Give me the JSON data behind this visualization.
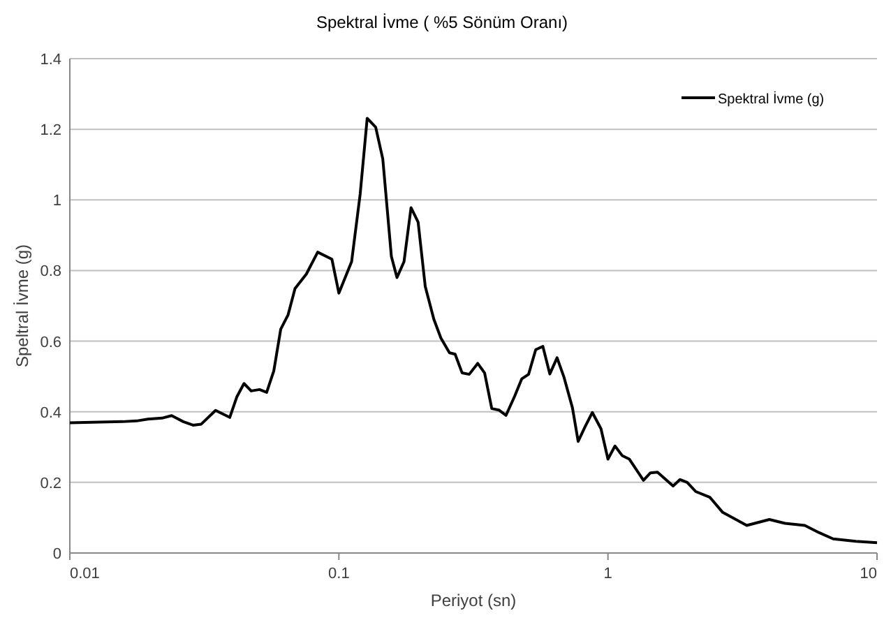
{
  "chart_data": {
    "type": "line",
    "title": "Spektral İvme ( %5 Sönüm Oranı)",
    "xlabel": "Periyot (sn)",
    "ylabel": "Speltral İvme (g)",
    "log": "x",
    "grid": "y",
    "legend": "top right",
    "marker": "none",
    "line_style": "solid",
    "xlim": [
      0.01,
      10
    ],
    "xticks": [
      0.01,
      0.1,
      1,
      10
    ],
    "ylim": [
      0,
      1.4
    ],
    "yticks": [
      0,
      0.2,
      0.4,
      0.6,
      0.8,
      1,
      1.2,
      1.4
    ],
    "x": [
      0.01,
      0.0157,
      0.0177,
      0.0195,
      0.022,
      0.0239,
      0.0264,
      0.0287,
      0.0308,
      0.0348,
      0.0393,
      0.0418,
      0.0444,
      0.0472,
      0.0507,
      0.0539,
      0.0573,
      0.0608,
      0.0647,
      0.0687,
      0.0757,
      0.0834,
      0.0942,
      0.1,
      0.1115,
      0.12,
      0.1274,
      0.137,
      0.1456,
      0.1567,
      0.1644,
      0.1746,
      0.1854,
      0.197,
      0.2094,
      0.2254,
      0.2393,
      0.2576,
      0.2704,
      0.2871,
      0.305,
      0.328,
      0.348,
      0.37,
      0.393,
      0.418,
      0.45,
      0.478,
      0.507,
      0.539,
      0.573,
      0.608,
      0.647,
      0.687,
      0.738,
      0.775,
      0.824,
      0.875,
      0.942,
      1,
      1.062,
      1.129,
      1.2,
      1.355,
      1.439,
      1.528,
      1.746,
      1.854,
      1.97,
      2.12,
      2.39,
      2.67,
      2.94,
      3.28,
      3.98,
      4.55,
      5.39,
      6.08,
      6.87,
      8.34,
      10
    ],
    "series": [
      {
        "name": "Spektral İvme (g)",
        "color": "#000000",
        "values": [
          0.369,
          0.372,
          0.374,
          0.379,
          0.382,
          0.389,
          0.372,
          0.362,
          0.365,
          0.404,
          0.384,
          0.443,
          0.48,
          0.459,
          0.463,
          0.455,
          0.516,
          0.634,
          0.674,
          0.749,
          0.79,
          0.852,
          0.832,
          0.736,
          0.825,
          1.017,
          1.231,
          1.206,
          1.116,
          0.84,
          0.78,
          0.825,
          0.978,
          0.937,
          0.755,
          0.662,
          0.609,
          0.567,
          0.563,
          0.51,
          0.506,
          0.537,
          0.51,
          0.409,
          0.405,
          0.39,
          0.444,
          0.493,
          0.506,
          0.576,
          0.585,
          0.507,
          0.553,
          0.497,
          0.411,
          0.316,
          0.359,
          0.398,
          0.352,
          0.266,
          0.303,
          0.276,
          0.266,
          0.206,
          0.227,
          0.229,
          0.19,
          0.208,
          0.2,
          0.174,
          0.158,
          0.115,
          0.098,
          0.078,
          0.095,
          0.084,
          0.078,
          0.058,
          0.04,
          0.033,
          0.029
        ]
      }
    ]
  }
}
